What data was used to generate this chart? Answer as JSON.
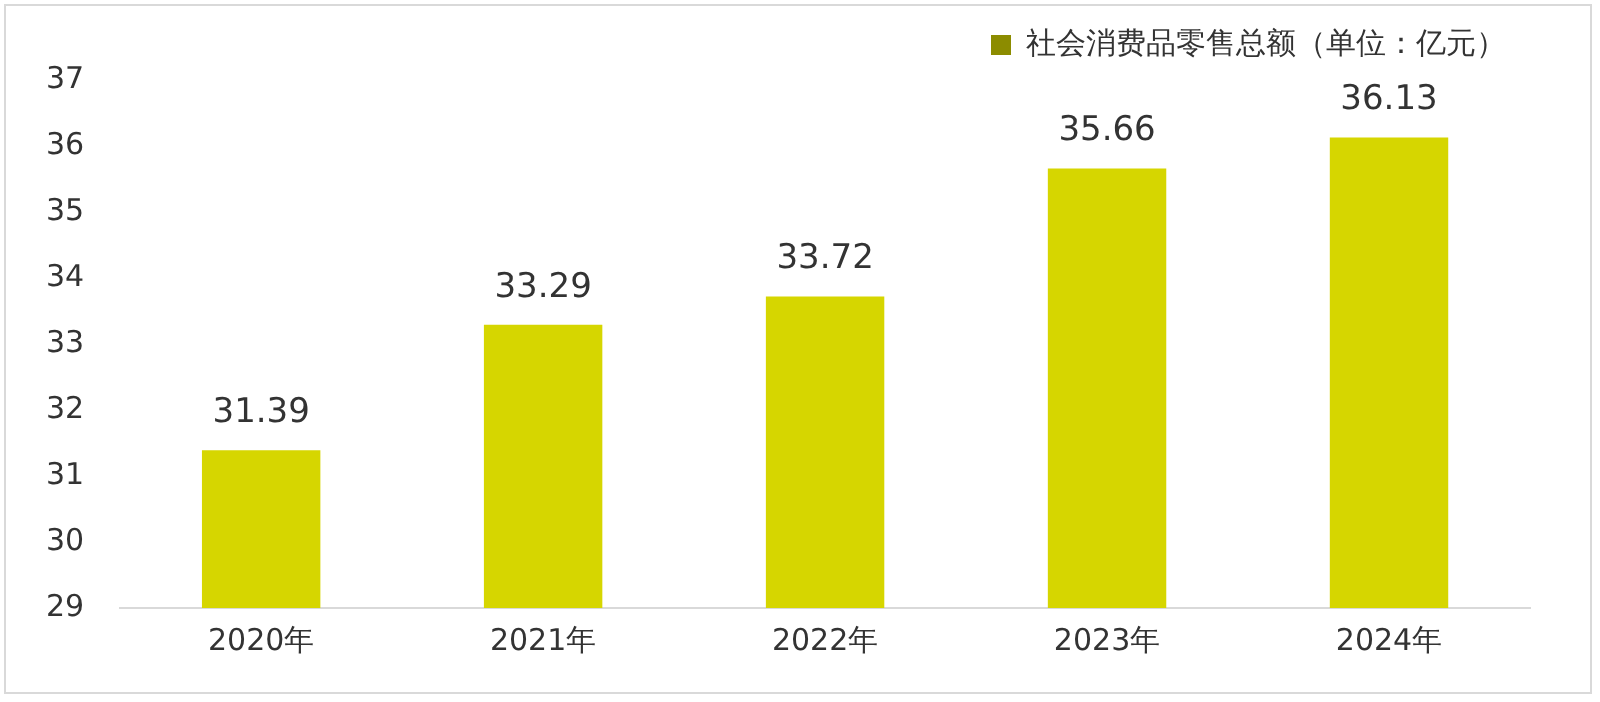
{
  "chart_data": {
    "type": "bar",
    "categories": [
      "2020年",
      "2021年",
      "2022年",
      "2023年",
      "2024年"
    ],
    "series": [
      {
        "name": "社会消费品零售总额（单位：亿元）",
        "color": "#d6d600",
        "values": [
          31.39,
          33.29,
          33.72,
          35.66,
          36.13
        ]
      }
    ],
    "ylim": [
      29,
      37
    ],
    "yticks": [
      29,
      30,
      31,
      32,
      33,
      34,
      35,
      36,
      37
    ],
    "grid": false,
    "legend": "top right",
    "data_labels": true
  }
}
